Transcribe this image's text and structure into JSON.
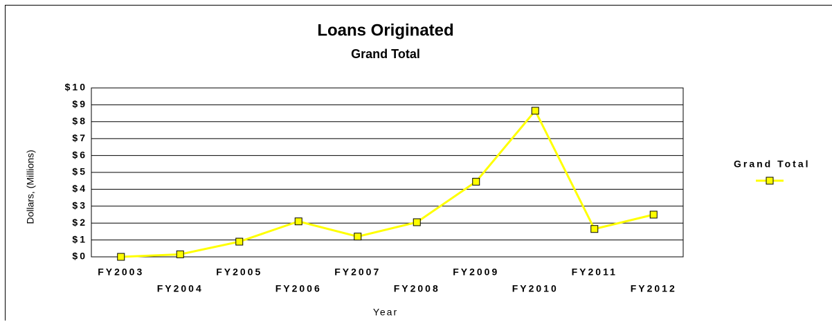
{
  "chart_data": {
    "type": "line",
    "title": "Loans Originated",
    "subtitle": "Grand Total",
    "x_label": "Year",
    "y_label": "Dollars, (Millions)",
    "categories": [
      "FY2003",
      "FY2004",
      "FY2005",
      "FY2006",
      "FY2007",
      "FY2008",
      "FY2009",
      "FY2010",
      "FY2011",
      "FY2012"
    ],
    "series": [
      {
        "name": "Grand Total",
        "color": "#ffff00",
        "values": [
          0,
          0.15,
          0.9,
          2.1,
          1.2,
          2.05,
          4.45,
          8.65,
          1.65,
          2.5
        ]
      }
    ],
    "ylim": [
      0,
      10
    ],
    "yticks": [
      {
        "value": 0,
        "label": "$0"
      },
      {
        "value": 1,
        "label": "$1"
      },
      {
        "value": 2,
        "label": "$2"
      },
      {
        "value": 3,
        "label": "$3"
      },
      {
        "value": 4,
        "label": "$4"
      },
      {
        "value": 5,
        "label": "$5"
      },
      {
        "value": 6,
        "label": "$6"
      },
      {
        "value": 7,
        "label": "$7"
      },
      {
        "value": 8,
        "label": "$8"
      },
      {
        "value": 9,
        "label": "$9"
      },
      {
        "value": 10,
        "label": "$10"
      }
    ],
    "grid": true,
    "legend": "right"
  }
}
